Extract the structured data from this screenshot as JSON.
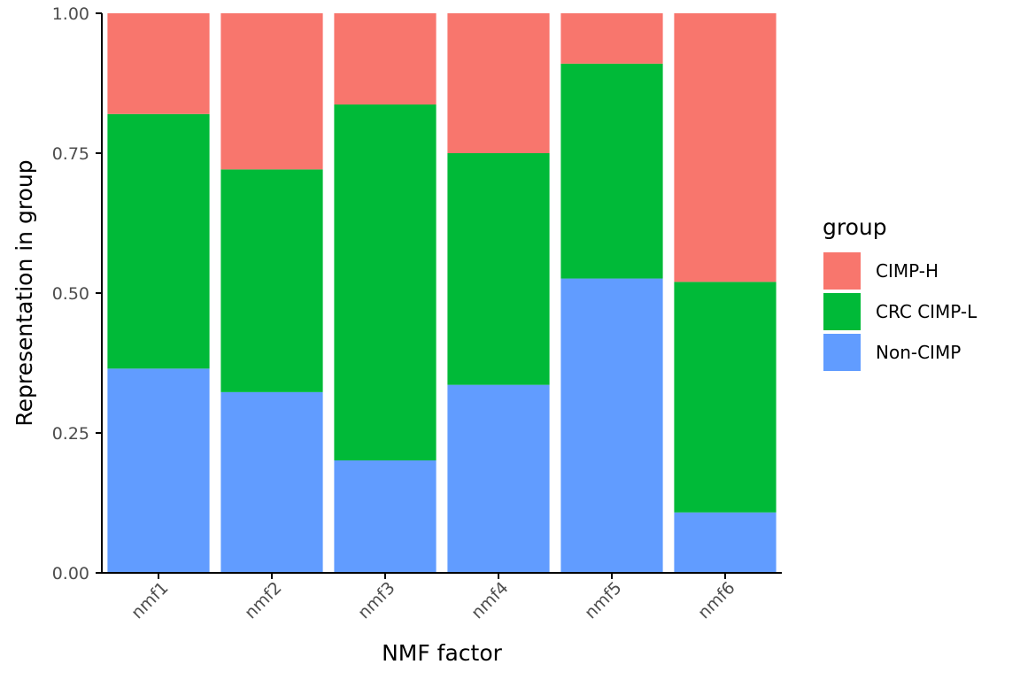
{
  "chart_data": {
    "type": "bar",
    "stacked": true,
    "title": "",
    "xlabel": "NMF factor",
    "ylabel": "Representation in group",
    "ylim": [
      0,
      1
    ],
    "yticks": [
      "0.00",
      "0.25",
      "0.50",
      "0.75",
      "1.00"
    ],
    "ytick_values": [
      0,
      0.25,
      0.5,
      0.75,
      1
    ],
    "grid": false,
    "legend_position": "right",
    "legend_title": "group",
    "categories": [
      "nmf1",
      "nmf2",
      "nmf3",
      "nmf4",
      "nmf5",
      "nmf6"
    ],
    "series": [
      {
        "name": "Non-CIMP",
        "color": "#619CFF",
        "values": [
          0.365,
          0.323,
          0.201,
          0.336,
          0.526,
          0.108
        ]
      },
      {
        "name": "CRC CIMP-L",
        "color": "#00BA38",
        "values": [
          0.455,
          0.398,
          0.636,
          0.414,
          0.384,
          0.412
        ]
      },
      {
        "name": "CIMP-H",
        "color": "#F8766D",
        "values": [
          0.18,
          0.279,
          0.163,
          0.25,
          0.09,
          0.48
        ]
      }
    ],
    "legend_order": [
      "CIMP-H",
      "CRC CIMP-L",
      "Non-CIMP"
    ]
  }
}
